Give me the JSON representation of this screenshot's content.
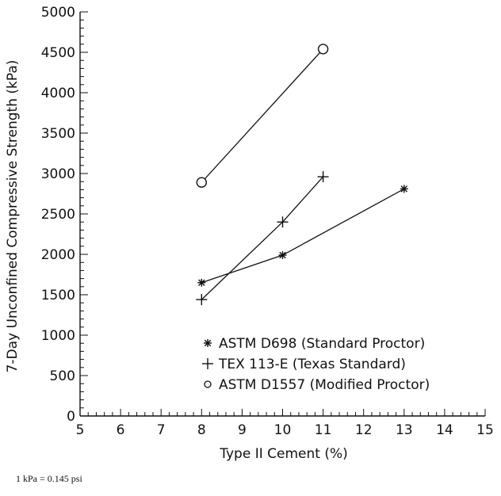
{
  "chart_data": {
    "type": "line",
    "title": "",
    "xlabel": "Type II Cement (%)",
    "ylabel": "7-Day Unconfined Compressive Strength (kPa)",
    "xlim": [
      5,
      15
    ],
    "ylim": [
      0,
      5000
    ],
    "x_ticks": [
      5,
      6,
      7,
      8,
      9,
      10,
      11,
      12,
      13,
      14,
      15
    ],
    "y_ticks": [
      0,
      500,
      1000,
      1500,
      2000,
      2500,
      3000,
      3500,
      4000,
      4500,
      5000
    ],
    "x_minor_step": 0.2,
    "y_minor_step": 100,
    "grid": false,
    "legend_position": "bottom-right",
    "series": [
      {
        "name": "ASTM D698 (Standard Proctor)",
        "marker": "star",
        "x": [
          8,
          10,
          13
        ],
        "y": [
          1650,
          1990,
          2810
        ]
      },
      {
        "name": "TEX 113-E (Texas Standard)",
        "marker": "plus",
        "x": [
          8,
          10,
          11
        ],
        "y": [
          1440,
          2400,
          2960
        ]
      },
      {
        "name": "ASTM D1557 (Modified Proctor)",
        "marker": "circle",
        "x": [
          8,
          11
        ],
        "y": [
          2890,
          4540
        ]
      }
    ]
  },
  "footnote": "1 kPa = 0.145 psi"
}
